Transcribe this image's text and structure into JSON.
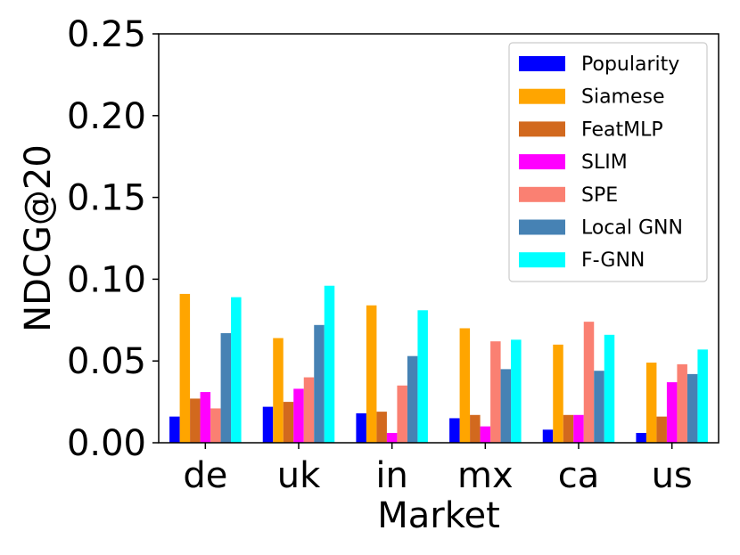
{
  "chart_data": {
    "type": "bar",
    "xlabel": "Market",
    "ylabel": "NDCG@20",
    "ylim": [
      0,
      0.25
    ],
    "yticks": [
      "0.00",
      "0.05",
      "0.10",
      "0.15",
      "0.20",
      "0.25"
    ],
    "categories": [
      "de",
      "uk",
      "in",
      "mx",
      "ca",
      "us"
    ],
    "legend_position": "top-right",
    "grid": false,
    "series": [
      {
        "name": "Popularity",
        "color": "#0000ff",
        "values": [
          0.016,
          0.022,
          0.018,
          0.015,
          0.008,
          0.006
        ]
      },
      {
        "name": "Siamese",
        "color": "#ffa500",
        "values": [
          0.091,
          0.064,
          0.084,
          0.07,
          0.06,
          0.049
        ]
      },
      {
        "name": "FeatMLP",
        "color": "#d2691e",
        "values": [
          0.027,
          0.025,
          0.019,
          0.017,
          0.017,
          0.016
        ]
      },
      {
        "name": "SLIM",
        "color": "#ff00ff",
        "values": [
          0.031,
          0.033,
          0.006,
          0.01,
          0.017,
          0.037
        ]
      },
      {
        "name": "SPE",
        "color": "#fa8072",
        "values": [
          0.021,
          0.04,
          0.035,
          0.062,
          0.074,
          0.048
        ]
      },
      {
        "name": "Local GNN",
        "color": "#4682b4",
        "values": [
          0.067,
          0.072,
          0.053,
          0.045,
          0.044,
          0.042
        ]
      },
      {
        "name": "F-GNN",
        "color": "#00ffff",
        "values": [
          0.089,
          0.096,
          0.081,
          0.063,
          0.066,
          0.057
        ]
      }
    ]
  }
}
